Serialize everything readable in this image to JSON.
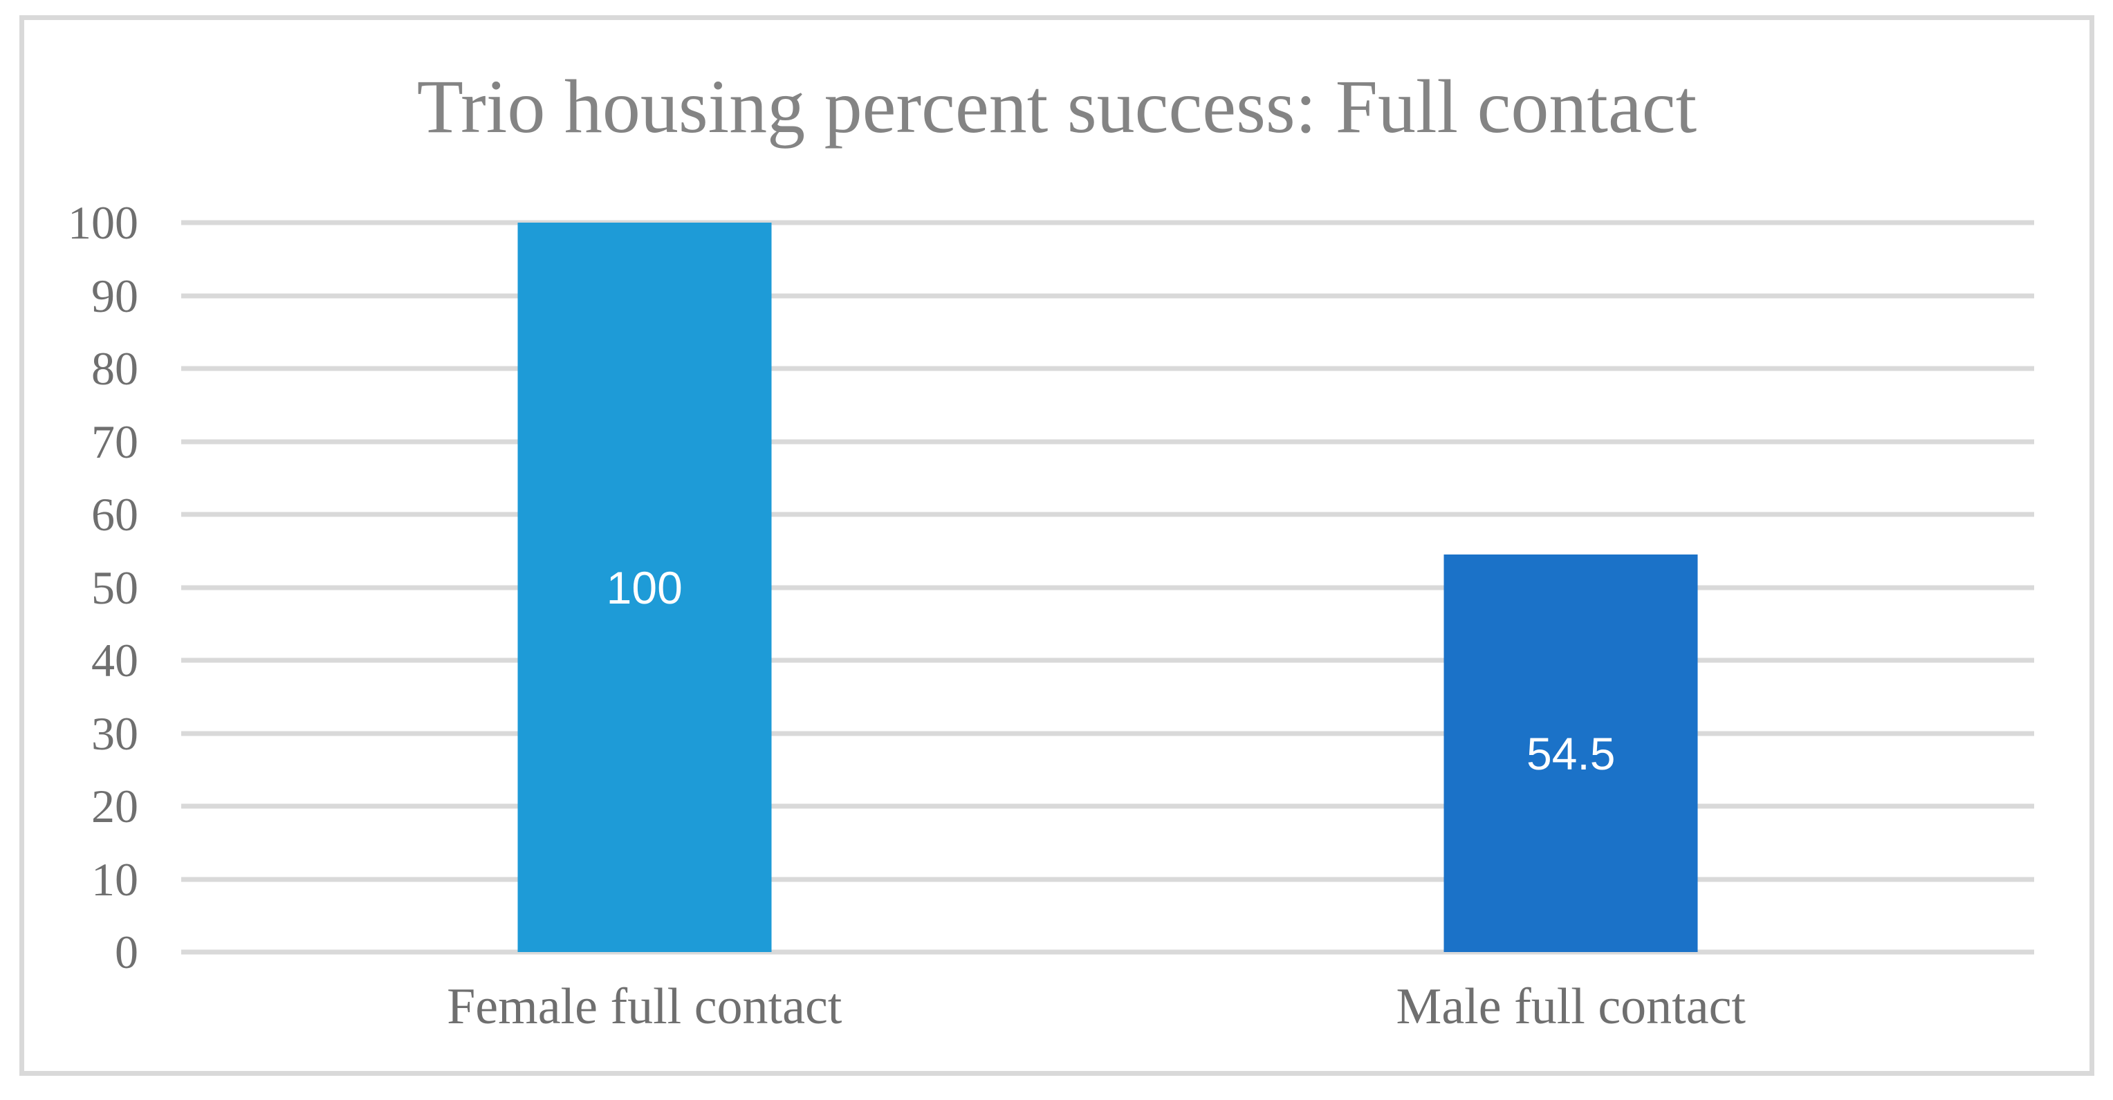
{
  "chart_data": {
    "type": "bar",
    "title": "Trio housing percent success: Full contact",
    "categories": [
      "Female full contact",
      "Male full contact"
    ],
    "values": [
      100,
      54.5
    ],
    "data_labels": [
      "100",
      "54.5"
    ],
    "bar_colors": [
      "#1E9BD7",
      "#1B72C8"
    ],
    "data_label_color": "#FFFFFF",
    "data_label_position": "center",
    "xlabel": "",
    "ylabel": "",
    "ylim": [
      0,
      100
    ],
    "yticks": [
      0,
      10,
      20,
      30,
      40,
      50,
      60,
      70,
      80,
      90,
      100
    ],
    "grid": true,
    "gridline_color": "#D9D9D9",
    "frame_color": "#D9D9D9",
    "title_color": "#848484",
    "axis_label_color": "#6F6F6F",
    "legend_position": "none"
  }
}
